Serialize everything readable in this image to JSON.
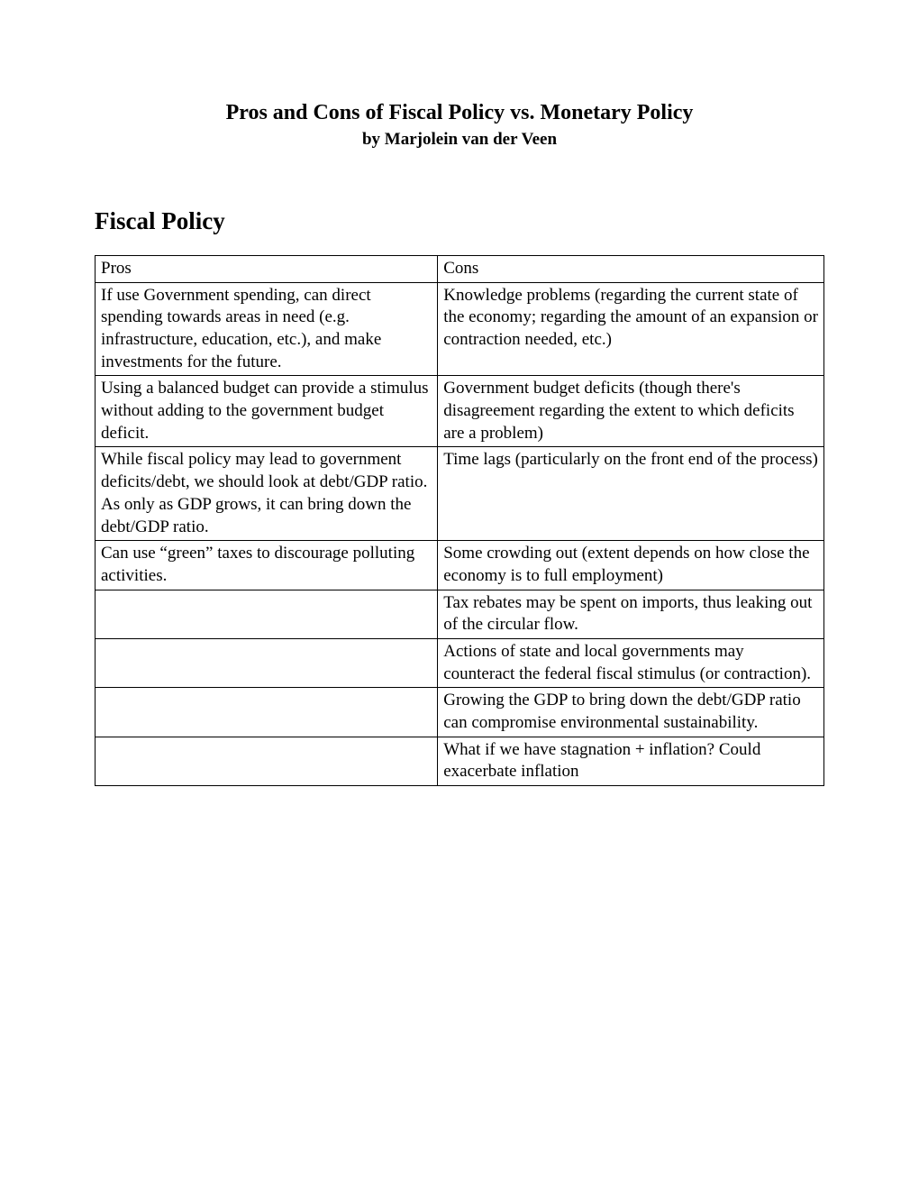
{
  "header": {
    "title": "Pros and Cons of Fiscal Policy vs. Monetary Policy",
    "author": "by Marjolein van der Veen"
  },
  "section": {
    "title": "Fiscal Policy"
  },
  "table": {
    "columns": {
      "pros": "Pros",
      "cons": "Cons"
    },
    "rows": [
      {
        "pros": "If use Government spending, can direct spending towards areas in need (e.g. infrastructure, education, etc.), and make investments for the future.",
        "cons": "Knowledge problems (regarding the current state of the economy; regarding the amount of an expansion or contraction needed, etc.)"
      },
      {
        "pros": "Using a balanced budget can provide a stimulus without adding to the government budget deficit.",
        "cons": "Government budget deficits (though there's disagreement regarding the extent to which deficits are a problem)"
      },
      {
        "pros": "While fiscal policy may lead to government deficits/debt, we should look at debt/GDP ratio.  As only as GDP grows, it can bring down the debt/GDP ratio.",
        "cons": "Time lags (particularly on the front end of the process)"
      },
      {
        "pros": "Can use “green” taxes to discourage polluting activities.",
        "cons": "Some crowding out (extent depends on how close the economy is to full employment)"
      },
      {
        "pros": "",
        "cons": "Tax rebates may be spent on imports, thus leaking out of the circular flow."
      },
      {
        "pros": "",
        "cons": "Actions of state and local governments may counteract the federal fiscal stimulus (or contraction)."
      },
      {
        "pros": "",
        "cons": "Growing the GDP to bring down the debt/GDP ratio can compromise environmental sustainability."
      },
      {
        "pros": "",
        "cons": "What if we have stagnation + inflation? Could exacerbate inflation"
      }
    ]
  },
  "styling": {
    "background_color": "#ffffff",
    "text_color": "#000000",
    "border_color": "#000000",
    "title_fontsize": 24,
    "author_fontsize": 19,
    "section_fontsize": 27,
    "body_fontsize": 19,
    "col_widths_pct": [
      47,
      53
    ],
    "font_family": "Palatino Linotype, Book Antiqua, Palatino, Georgia, serif"
  }
}
